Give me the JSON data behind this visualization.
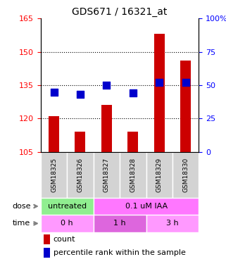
{
  "title": "GDS671 / 16321_at",
  "samples": [
    "GSM18325",
    "GSM18326",
    "GSM18327",
    "GSM18328",
    "GSM18329",
    "GSM18330"
  ],
  "bar_values": [
    121,
    114,
    126,
    114,
    158,
    146
  ],
  "dot_values": [
    45,
    43,
    50,
    44,
    52,
    52
  ],
  "bar_color": "#cc0000",
  "dot_color": "#0000cc",
  "ylim_left": [
    105,
    165
  ],
  "ylim_right": [
    0,
    100
  ],
  "yticks_left": [
    105,
    120,
    135,
    150,
    165
  ],
  "yticks_right": [
    0,
    25,
    50,
    75,
    100
  ],
  "dose_labels": [
    {
      "text": "untreated",
      "color": "#90ee90",
      "span": [
        0,
        2
      ]
    },
    {
      "text": "0.1 uM IAA",
      "color": "#ff77ff",
      "span": [
        2,
        6
      ]
    }
  ],
  "time_labels": [
    {
      "text": "0 h",
      "color": "#ff99ff",
      "span": [
        0,
        2
      ]
    },
    {
      "text": "1 h",
      "color": "#dd66dd",
      "span": [
        2,
        4
      ]
    },
    {
      "text": "3 h",
      "color": "#ff99ff",
      "span": [
        4,
        6
      ]
    }
  ],
  "legend_count": "count",
  "legend_pct": "percentile rank within the sample",
  "dose_arrow_label": "dose",
  "time_arrow_label": "time",
  "grid_color": "#000000",
  "bar_width": 0.4,
  "dot_size": 50
}
